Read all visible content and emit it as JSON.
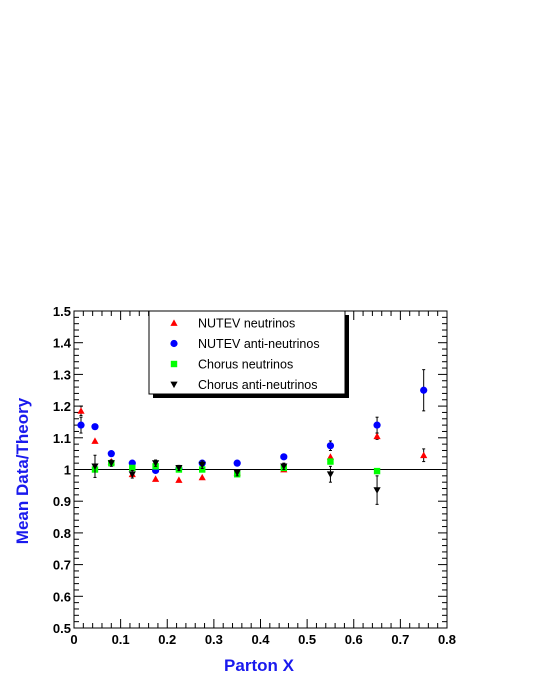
{
  "chart_data": {
    "type": "scatter",
    "title": "",
    "xlabel": "Parton X",
    "ylabel": "Mean Data/Theory",
    "xlim": [
      0,
      0.8
    ],
    "ylim": [
      0.5,
      1.5
    ],
    "xticks": [
      "0",
      "0.1",
      "0.2",
      "0.3",
      "0.4",
      "0.5",
      "0.6",
      "0.7",
      "0.8"
    ],
    "yticks": [
      "0.5",
      "0.6",
      "0.7",
      "0.8",
      "0.9",
      "1",
      "1.1",
      "1.2",
      "1.3",
      "1.4",
      "1.5"
    ],
    "reference_line": 1.0,
    "grid": false,
    "legend_position": "top-center",
    "series": [
      {
        "name": "NUTEV neutrinos",
        "marker": "triangle-up",
        "color": "#ff0000",
        "points": [
          {
            "x": 0.015,
            "y": 1.185,
            "err": 0.015
          },
          {
            "x": 0.045,
            "y": 1.09,
            "err": 0.0
          },
          {
            "x": 0.08,
            "y": 1.025,
            "err": 0.0
          },
          {
            "x": 0.125,
            "y": 0.985,
            "err": 0.0
          },
          {
            "x": 0.175,
            "y": 0.97,
            "err": 0.0
          },
          {
            "x": 0.225,
            "y": 0.967,
            "err": 0.0
          },
          {
            "x": 0.275,
            "y": 0.975,
            "err": 0.0
          },
          {
            "x": 0.35,
            "y": 0.99,
            "err": 0.0
          },
          {
            "x": 0.45,
            "y": 1.0,
            "err": 0.0
          },
          {
            "x": 0.55,
            "y": 1.04,
            "err": 0.0
          },
          {
            "x": 0.65,
            "y": 1.105,
            "err": 0.01
          },
          {
            "x": 0.75,
            "y": 1.045,
            "err": 0.02
          }
        ]
      },
      {
        "name": "NUTEV anti-neutrinos",
        "marker": "circle",
        "color": "#0000ff",
        "points": [
          {
            "x": 0.015,
            "y": 1.14,
            "err": 0.025
          },
          {
            "x": 0.045,
            "y": 1.135,
            "err": 0.0
          },
          {
            "x": 0.08,
            "y": 1.05,
            "err": 0.0
          },
          {
            "x": 0.125,
            "y": 1.02,
            "err": 0.0
          },
          {
            "x": 0.175,
            "y": 0.997,
            "err": 0.0
          },
          {
            "x": 0.225,
            "y": 1.003,
            "err": 0.0
          },
          {
            "x": 0.275,
            "y": 1.02,
            "err": 0.0
          },
          {
            "x": 0.35,
            "y": 1.02,
            "err": 0.0
          },
          {
            "x": 0.45,
            "y": 1.04,
            "err": 0.0
          },
          {
            "x": 0.55,
            "y": 1.075,
            "err": 0.015
          },
          {
            "x": 0.65,
            "y": 1.14,
            "err": 0.025
          },
          {
            "x": 0.75,
            "y": 1.25,
            "err": 0.065
          }
        ]
      },
      {
        "name": "Chorus neutrinos",
        "marker": "square",
        "color": "#00ff00",
        "points": [
          {
            "x": 0.045,
            "y": 1.0,
            "err": 0.0
          },
          {
            "x": 0.08,
            "y": 1.02,
            "err": 0.0
          },
          {
            "x": 0.125,
            "y": 1.005,
            "err": 0.0
          },
          {
            "x": 0.175,
            "y": 1.01,
            "err": 0.0
          },
          {
            "x": 0.225,
            "y": 1.0,
            "err": 0.0
          },
          {
            "x": 0.275,
            "y": 1.0,
            "err": 0.0
          },
          {
            "x": 0.35,
            "y": 0.985,
            "err": 0.0
          },
          {
            "x": 0.45,
            "y": 1.005,
            "err": 0.0
          },
          {
            "x": 0.55,
            "y": 1.025,
            "err": 0.0
          },
          {
            "x": 0.65,
            "y": 0.995,
            "err": 0.0
          }
        ]
      },
      {
        "name": "Chorus anti-neutrinos",
        "marker": "triangle-down",
        "color": "#000000",
        "points": [
          {
            "x": 0.045,
            "y": 1.01,
            "err": 0.035
          },
          {
            "x": 0.08,
            "y": 1.02,
            "err": 0.01
          },
          {
            "x": 0.125,
            "y": 0.985,
            "err": 0.012
          },
          {
            "x": 0.175,
            "y": 1.02,
            "err": 0.01
          },
          {
            "x": 0.225,
            "y": 1.005,
            "err": 0.008
          },
          {
            "x": 0.275,
            "y": 1.015,
            "err": 0.012
          },
          {
            "x": 0.35,
            "y": 0.99,
            "err": 0.01
          },
          {
            "x": 0.45,
            "y": 1.01,
            "err": 0.01
          },
          {
            "x": 0.55,
            "y": 0.985,
            "err": 0.025
          },
          {
            "x": 0.65,
            "y": 0.935,
            "err": 0.045
          }
        ]
      }
    ]
  }
}
